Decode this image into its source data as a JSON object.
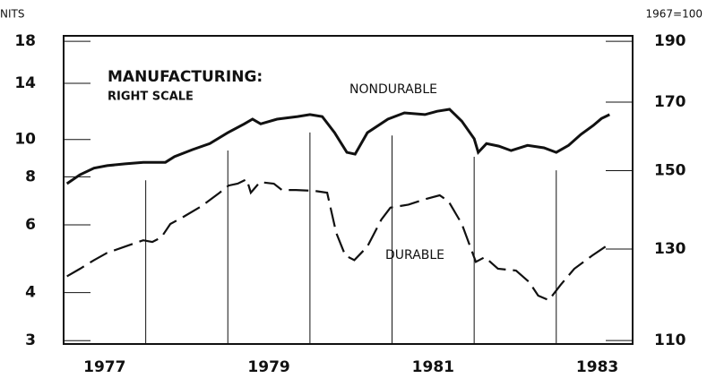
{
  "chart_data": {
    "type": "line",
    "y_label": "NITS",
    "y2_label": "1967=100",
    "annotations": [
      "MANUFACTURING:",
      "RIGHT SCALE",
      "NONDURABLE",
      "DURABLE"
    ],
    "log_scale": true,
    "xlim": [
      1977,
      1983.93
    ],
    "xticks": [
      {
        "value": 1977.5,
        "label": "1977"
      },
      {
        "value": 1979.5,
        "label": "1979"
      },
      {
        "value": 1981.5,
        "label": "1981"
      },
      {
        "value": 1983.5,
        "label": "1983"
      }
    ],
    "year_lines": [
      1978,
      1979,
      1980,
      1981,
      1982,
      1983
    ],
    "ylim": [
      2.94,
      18.6
    ],
    "yticks": [
      3,
      4,
      6,
      8,
      10,
      14,
      18
    ],
    "y2lim": [
      109.3,
      191.9
    ],
    "y2ticks": [
      110,
      130,
      150,
      170,
      190
    ],
    "series": [
      {
        "name": "NONDURABLE",
        "color": "#111",
        "axis": "y2",
        "dashed": false,
        "x": [
          1977.04,
          1977.2,
          1977.37,
          1977.53,
          1977.75,
          1977.97,
          1978.24,
          1978.35,
          1978.57,
          1978.78,
          1979.0,
          1979.2,
          1979.3,
          1979.4,
          1979.6,
          1979.85,
          1980.0,
          1980.15,
          1980.3,
          1980.45,
          1980.55,
          1980.7,
          1980.95,
          1981.15,
          1981.4,
          1981.55,
          1981.7,
          1981.85,
          1982.0,
          1982.05,
          1982.15,
          1982.3,
          1982.45,
          1982.65,
          1982.85,
          1983.0,
          1983.15,
          1983.3,
          1983.45,
          1983.55,
          1983.65
        ],
        "values": [
          146.5,
          148.9,
          150.7,
          151.4,
          151.9,
          152.3,
          152.3,
          153.9,
          155.9,
          157.6,
          160.8,
          163.4,
          164.8,
          163.4,
          164.8,
          165.6,
          166.2,
          165.6,
          160.8,
          155.1,
          154.6,
          160.8,
          164.8,
          166.7,
          166.2,
          167.2,
          167.8,
          164.2,
          159.0,
          155.1,
          157.6,
          156.9,
          155.6,
          157.1,
          156.4,
          155.1,
          157.1,
          160.3,
          162.9,
          165.0,
          166.2
        ]
      },
      {
        "name": "DURABLE",
        "color": "#111",
        "axis": "y2",
        "dashed": true,
        "x": [
          1977.04,
          1977.2,
          1977.37,
          1977.53,
          1977.75,
          1977.97,
          1978.08,
          1978.19,
          1978.3,
          1978.46,
          1978.68,
          1978.9,
          1979.01,
          1979.12,
          1979.23,
          1979.28,
          1979.39,
          1979.56,
          1979.66,
          1979.83,
          1980.05,
          1980.21,
          1980.32,
          1980.43,
          1980.54,
          1980.7,
          1980.87,
          1980.98,
          1981.2,
          1981.42,
          1981.58,
          1981.69,
          1981.85,
          1982.02,
          1982.13,
          1982.29,
          1982.51,
          1982.67,
          1982.78,
          1982.91,
          1983.05,
          1983.22,
          1983.44,
          1983.6
        ],
        "values": [
          123.7,
          125.4,
          127.4,
          129.1,
          130.6,
          132.1,
          131.7,
          132.8,
          136.1,
          137.9,
          140.6,
          144.1,
          146.0,
          146.5,
          147.7,
          144.1,
          146.9,
          146.5,
          144.8,
          144.8,
          144.6,
          144.1,
          133.9,
          128.5,
          127.4,
          130.6,
          137.2,
          140.2,
          141.0,
          142.5,
          143.4,
          141.8,
          136.1,
          127.0,
          128.1,
          125.4,
          125.0,
          122.4,
          119.4,
          118.4,
          121.7,
          125.4,
          128.5,
          130.6
        ]
      }
    ]
  }
}
